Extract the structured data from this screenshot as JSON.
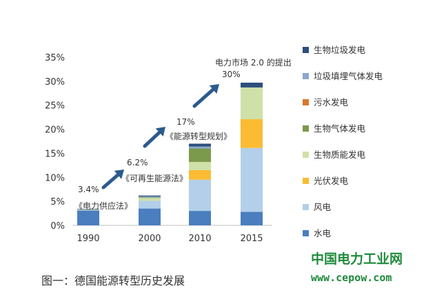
{
  "chart_data": {
    "type": "bar",
    "stacked": true,
    "categories": [
      "1990",
      "2000",
      "2010",
      "2015"
    ],
    "ylim": [
      0,
      35
    ],
    "yticks": [
      0,
      5,
      10,
      15,
      20,
      25,
      30,
      35
    ],
    "ytick_labels": [
      "0%",
      "5%",
      "10%",
      "15%",
      "20%",
      "25%",
      "30%",
      "35%"
    ],
    "legend_position": "right",
    "grid": false,
    "series": [
      {
        "name": "水电",
        "color": "#4a7ebf",
        "values": [
          3.1,
          3.5,
          3.0,
          2.8
        ]
      },
      {
        "name": "风电",
        "color": "#b3cfe9",
        "values": [
          0.1,
          1.6,
          6.5,
          13.3
        ]
      },
      {
        "name": "光伏发电",
        "color": "#fbbb33",
        "values": [
          0.0,
          0.0,
          2.0,
          6.0
        ]
      },
      {
        "name": "生物质能发电",
        "color": "#cfe0a9",
        "values": [
          0.1,
          0.6,
          1.7,
          6.6
        ]
      },
      {
        "name": "生物气体发电",
        "color": "#7b9a4c",
        "values": [
          0.0,
          0.1,
          2.8,
          0.0
        ]
      },
      {
        "name": "污水发电",
        "color": "#d9772c",
        "values": [
          0.0,
          0.0,
          0.0,
          0.0
        ]
      },
      {
        "name": "垃圾填埋气体发电",
        "color": "#8ca7cf",
        "values": [
          0.0,
          0.2,
          0.4,
          0.0
        ]
      },
      {
        "name": "生物垃圾发电",
        "color": "#2d4f7c",
        "values": [
          0.1,
          0.2,
          0.6,
          1.0
        ]
      }
    ],
    "legend_order": [
      "生物垃圾发电",
      "垃圾填埋气体发电",
      "污水发电",
      "生物气体发电",
      "生物质能发电",
      "光伏发电",
      "风电",
      "水电"
    ],
    "annotations": [
      {
        "percent": "3.4%",
        "label": "《电力供应法》"
      },
      {
        "percent": "6.2%",
        "label": "《可再生能源法》"
      },
      {
        "percent": "17%",
        "label": "《能源转型规划》"
      },
      {
        "percent": "30%",
        "label": "电力市场 2.0 的提出"
      }
    ],
    "caption": "图一：德国能源转型历史发展"
  },
  "watermark": {
    "name": "中国电力工业网",
    "url": "www.cepow.com",
    "color": "#1f8a3b"
  }
}
